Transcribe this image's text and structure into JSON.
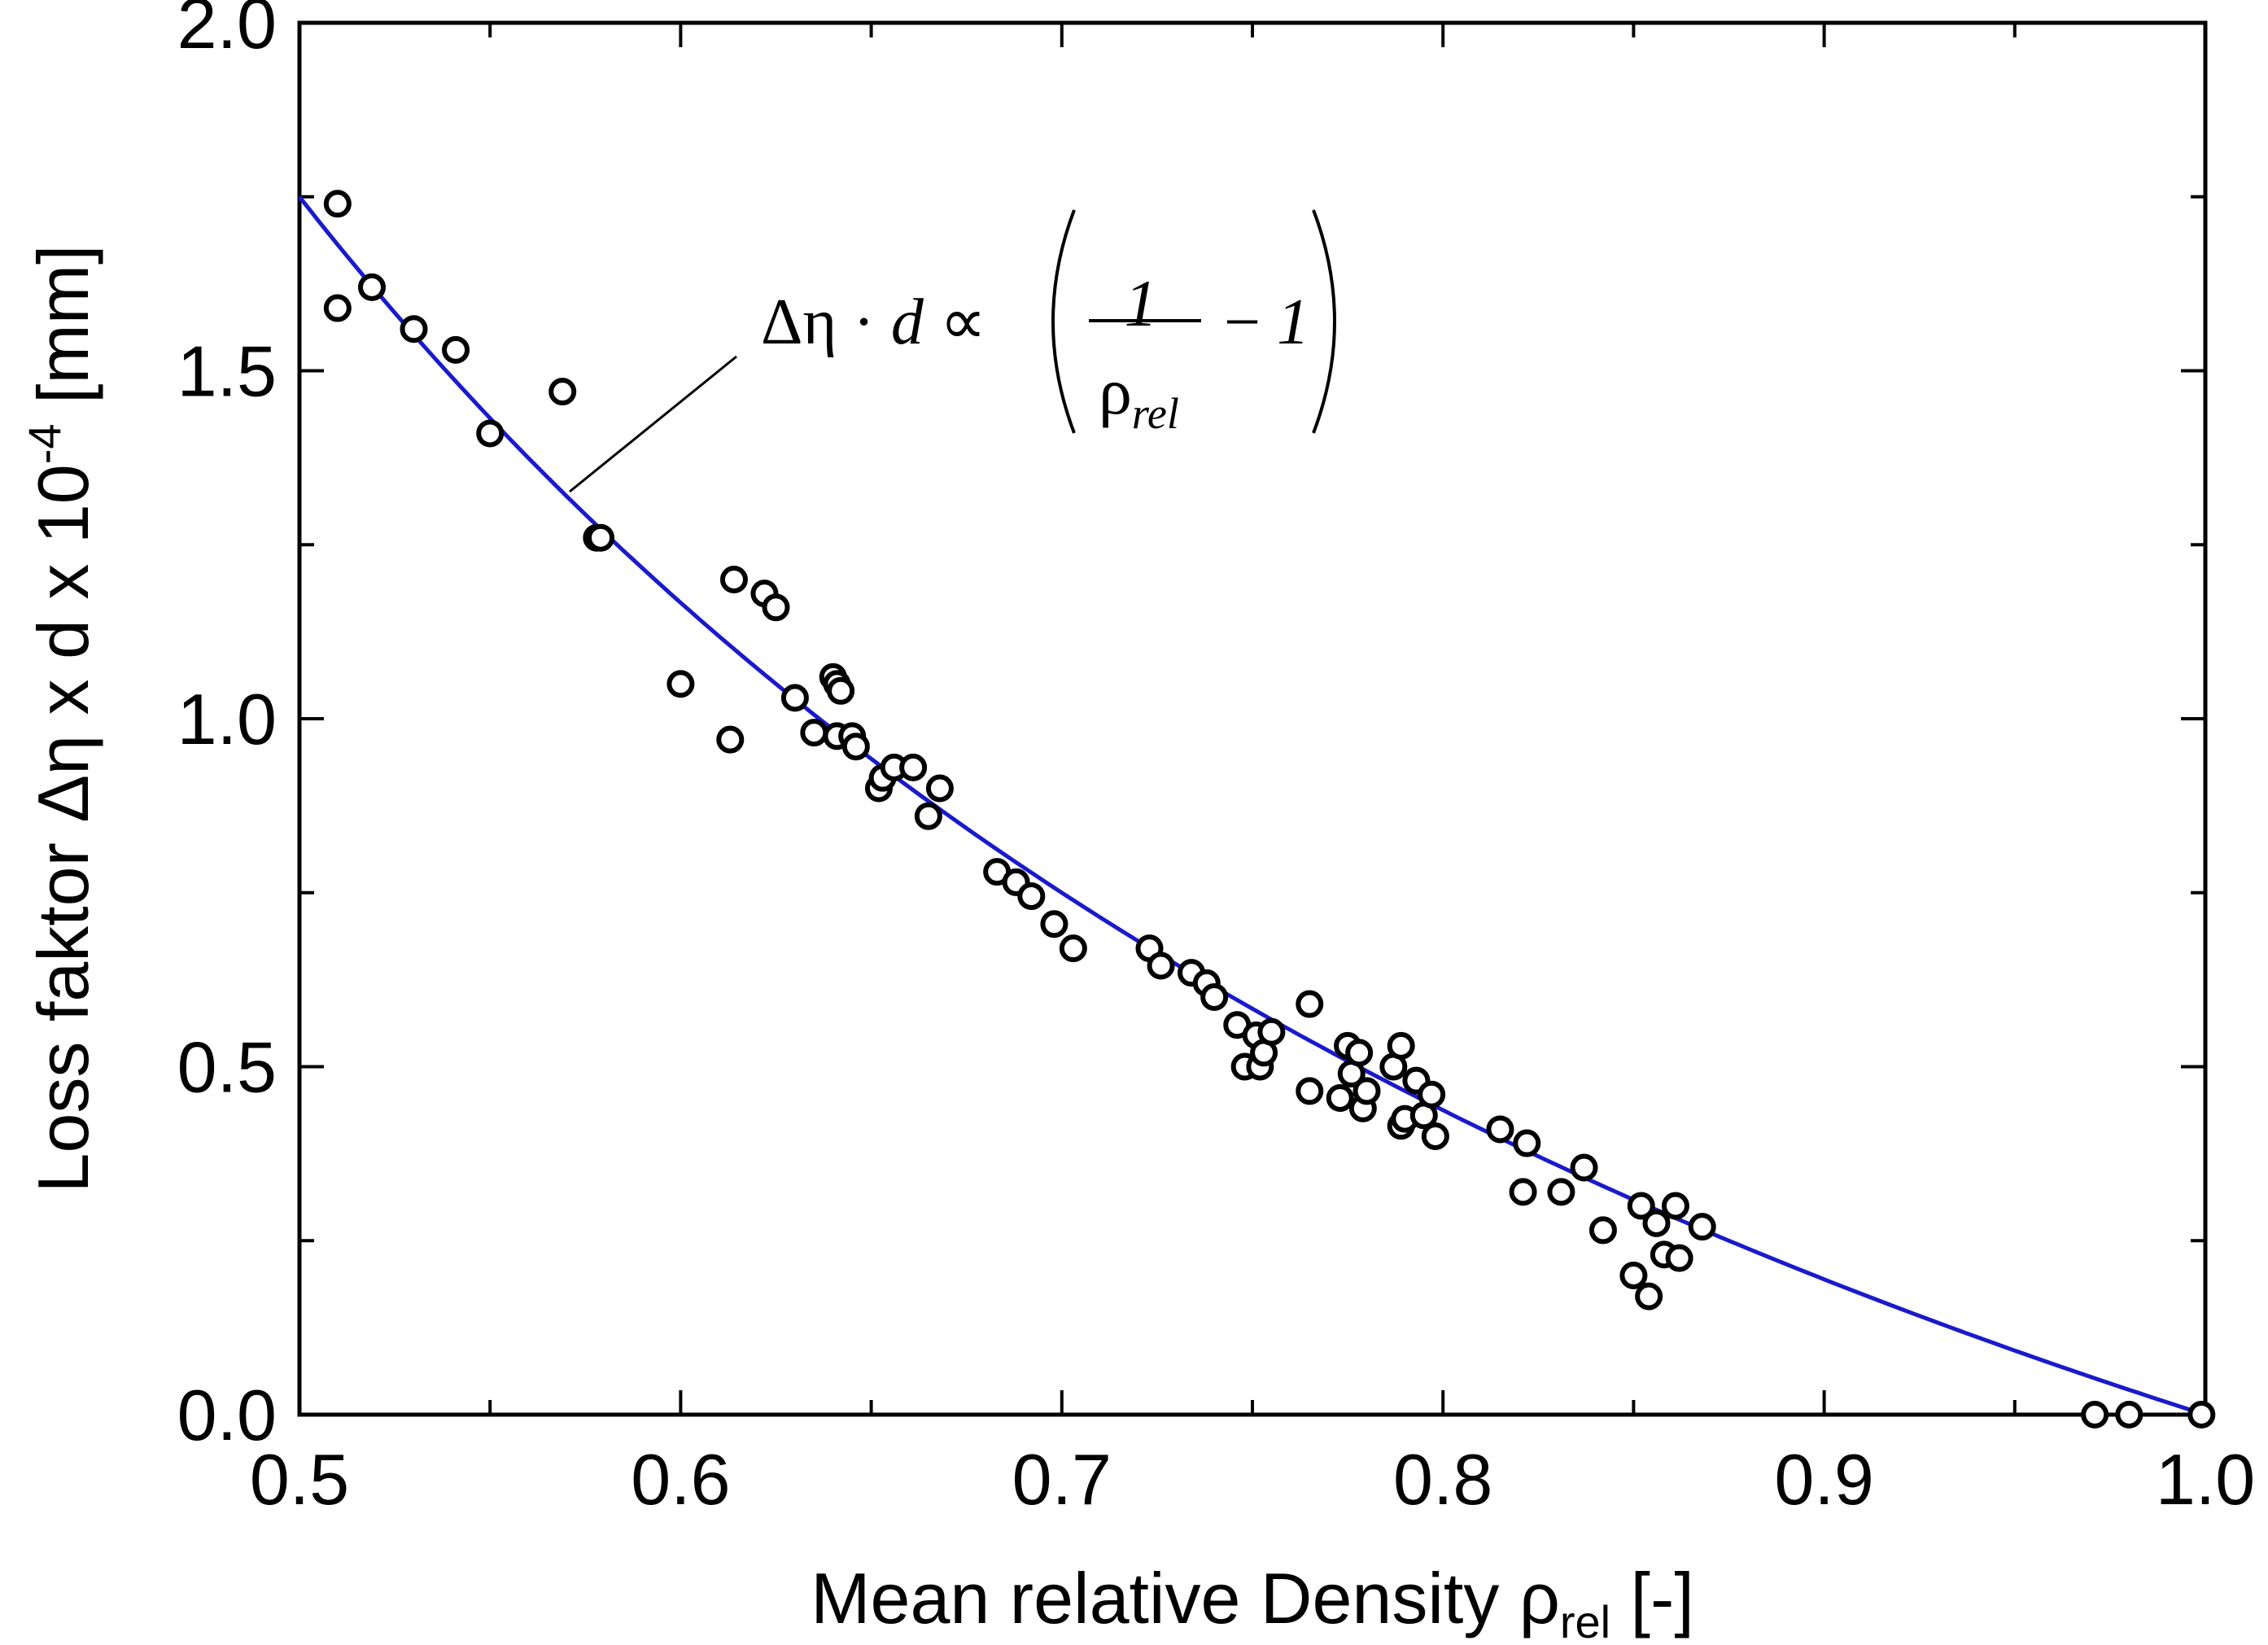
{
  "chart_data": {
    "type": "scatter",
    "title": "",
    "xlabel": {
      "main": "Mean relative Density ",
      "symbol": "ρ",
      "sub": "rel",
      "unit": " [-]"
    },
    "ylabel": {
      "main": "Loss faktor Δη x d x 10",
      "sup": "-4",
      "unit": "  [mm]"
    },
    "xlim": [
      0.5,
      1.0
    ],
    "ylim": [
      0.0,
      2.0
    ],
    "x_ticks": [
      "0.5",
      "0.6",
      "0.7",
      "0.8",
      "0.9",
      "1.0"
    ],
    "y_ticks": [
      "0.0",
      "0.5",
      "1.0",
      "1.5",
      "2.0"
    ],
    "grid": false,
    "series": [
      {
        "kind": "scatter",
        "marker": "open-circle",
        "color": "#000000",
        "points": [
          [
            0.51,
            1.74
          ],
          [
            0.51,
            1.59
          ],
          [
            0.519,
            1.62
          ],
          [
            0.53,
            1.56
          ],
          [
            0.541,
            1.53
          ],
          [
            0.55,
            1.41
          ],
          [
            0.569,
            1.47
          ],
          [
            0.578,
            1.26
          ],
          [
            0.579,
            1.26
          ],
          [
            0.6,
            1.05
          ],
          [
            0.613,
            0.97
          ],
          [
            0.614,
            1.2
          ],
          [
            0.622,
            1.18
          ],
          [
            0.625,
            1.16
          ],
          [
            0.63,
            1.03
          ],
          [
            0.635,
            0.98
          ],
          [
            0.64,
            1.06
          ],
          [
            0.641,
            1.05
          ],
          [
            0.642,
            1.04
          ],
          [
            0.641,
            0.975
          ],
          [
            0.645,
            0.975
          ],
          [
            0.646,
            0.96
          ],
          [
            0.652,
            0.9
          ],
          [
            0.653,
            0.915
          ],
          [
            0.656,
            0.93
          ],
          [
            0.661,
            0.93
          ],
          [
            0.665,
            0.86
          ],
          [
            0.668,
            0.9
          ],
          [
            0.683,
            0.78
          ],
          [
            0.688,
            0.765
          ],
          [
            0.692,
            0.745
          ],
          [
            0.698,
            0.705
          ],
          [
            0.703,
            0.67
          ],
          [
            0.723,
            0.67
          ],
          [
            0.726,
            0.645
          ],
          [
            0.734,
            0.635
          ],
          [
            0.738,
            0.62
          ],
          [
            0.74,
            0.6
          ],
          [
            0.746,
            0.56
          ],
          [
            0.748,
            0.5
          ],
          [
            0.751,
            0.545
          ],
          [
            0.752,
            0.5
          ],
          [
            0.753,
            0.52
          ],
          [
            0.755,
            0.55
          ],
          [
            0.765,
            0.59
          ],
          [
            0.765,
            0.465
          ],
          [
            0.773,
            0.455
          ],
          [
            0.775,
            0.53
          ],
          [
            0.776,
            0.49
          ],
          [
            0.778,
            0.52
          ],
          [
            0.779,
            0.44
          ],
          [
            0.78,
            0.465
          ],
          [
            0.787,
            0.5
          ],
          [
            0.789,
            0.53
          ],
          [
            0.789,
            0.415
          ],
          [
            0.79,
            0.425
          ],
          [
            0.793,
            0.48
          ],
          [
            0.795,
            0.43
          ],
          [
            0.797,
            0.46
          ],
          [
            0.798,
            0.4
          ],
          [
            0.815,
            0.41
          ],
          [
            0.821,
            0.32
          ],
          [
            0.822,
            0.39
          ],
          [
            0.831,
            0.32
          ],
          [
            0.837,
            0.355
          ],
          [
            0.842,
            0.265
          ],
          [
            0.85,
            0.2
          ],
          [
            0.852,
            0.3
          ],
          [
            0.854,
            0.17
          ],
          [
            0.856,
            0.275
          ],
          [
            0.858,
            0.23
          ],
          [
            0.861,
            0.3
          ],
          [
            0.862,
            0.225
          ],
          [
            0.868,
            0.27
          ],
          [
            0.971,
            0.0
          ],
          [
            0.98,
            0.0
          ],
          [
            0.999,
            0.0
          ]
        ]
      },
      {
        "kind": "line",
        "color": "#1a1acc",
        "model": "1/x - 1",
        "scale": 1.75
      }
    ],
    "annotation": {
      "lhs": "Δη · ",
      "lhs_var": "d",
      "prop": " ∝ ",
      "numerator": "1",
      "denominator": "ρ",
      "denominator_sub": "rel",
      "minus": "− ",
      "one": "1"
    }
  }
}
